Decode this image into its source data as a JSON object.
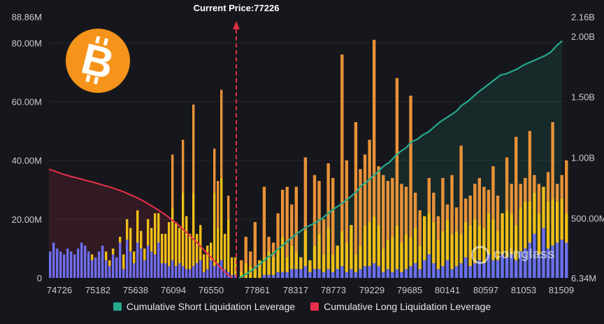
{
  "chart_data": {
    "type": "bar",
    "current_price_label": "Current Price:77226",
    "current_price": 77226,
    "x_ticks": [
      "74726",
      "75182",
      "75638",
      "76094",
      "76550",
      "77861",
      "78317",
      "78773",
      "79229",
      "79685",
      "80141",
      "80597",
      "81053",
      "81509"
    ],
    "y_left_ticks": [
      "0",
      "20.00M",
      "40.00M",
      "60.00M",
      "80.00M",
      "88.86M"
    ],
    "y_left_max": 88.86,
    "y_right_ticks": [
      "6.34M",
      "500.00M",
      "1.00B",
      "1.50B",
      "2.00B",
      "2.16B"
    ],
    "y_right_max": 2.16,
    "legend": [
      {
        "name": "Cumulative Short Liquidation Leverage",
        "color": "#26a98e"
      },
      {
        "name": "Cumulative Long Liquidation Leverage",
        "color": "#e8304b"
      }
    ],
    "colors": {
      "blue": "#6c6ef0",
      "yellow": "#f0be18",
      "orange": "#e99238",
      "short_line": "#26a98e",
      "long_line": "#e8304b",
      "price_line": "#d9313f"
    },
    "left_bars": [
      [
        9,
        0,
        0
      ],
      [
        12,
        0,
        0
      ],
      [
        10,
        0,
        0
      ],
      [
        9,
        0,
        0
      ],
      [
        8,
        0,
        0
      ],
      [
        10,
        0,
        0
      ],
      [
        9,
        0,
        0
      ],
      [
        8,
        0,
        0
      ],
      [
        10,
        0,
        0
      ],
      [
        12,
        0,
        0
      ],
      [
        11,
        0,
        0
      ],
      [
        9,
        0,
        0
      ],
      [
        6,
        2,
        0
      ],
      [
        7,
        0,
        0
      ],
      [
        9,
        0,
        0
      ],
      [
        11,
        0,
        0
      ],
      [
        6,
        3,
        0
      ],
      [
        4,
        2,
        0
      ],
      [
        8,
        2,
        0
      ],
      [
        7,
        0,
        0
      ],
      [
        12,
        2,
        0
      ],
      [
        3,
        5,
        0
      ],
      [
        13,
        7,
        0
      ],
      [
        9,
        8,
        0
      ],
      [
        5,
        4,
        0
      ],
      [
        12,
        11,
        0
      ],
      [
        10,
        6,
        0
      ],
      [
        6,
        4,
        0
      ],
      [
        11,
        9,
        0
      ],
      [
        9,
        8,
        0
      ],
      [
        8,
        14,
        0
      ],
      [
        12,
        10,
        0
      ],
      [
        5,
        10,
        0
      ],
      [
        5,
        10,
        0
      ],
      [
        4,
        15,
        0
      ],
      [
        6,
        18,
        18
      ],
      [
        4,
        15,
        0
      ],
      [
        5,
        12,
        0
      ],
      [
        4,
        25,
        18
      ],
      [
        3,
        18,
        0
      ],
      [
        3,
        12,
        0
      ],
      [
        4,
        25,
        30
      ],
      [
        5,
        10,
        0
      ],
      [
        6,
        12,
        0
      ],
      [
        2,
        6,
        0
      ],
      [
        3,
        8,
        0
      ],
      [
        6,
        6,
        0
      ],
      [
        4,
        25,
        15
      ],
      [
        5,
        12,
        16
      ],
      [
        6,
        28,
        30
      ],
      [
        3,
        12,
        0
      ],
      [
        2,
        18,
        8
      ],
      [
        1,
        6,
        0
      ],
      [
        1,
        6,
        0
      ]
    ],
    "right_bars": [
      [
        0,
        2,
        4
      ],
      [
        0,
        5,
        9
      ],
      [
        0,
        4,
        5
      ],
      [
        0,
        3,
        16
      ],
      [
        0,
        6,
        0
      ],
      [
        1,
        6,
        24
      ],
      [
        1,
        8,
        5
      ],
      [
        1,
        6,
        5
      ],
      [
        2,
        8,
        12
      ],
      [
        2,
        12,
        16
      ],
      [
        2,
        5,
        24
      ],
      [
        3,
        8,
        14
      ],
      [
        3,
        6,
        22
      ],
      [
        3,
        4,
        0
      ],
      [
        4,
        12,
        25
      ],
      [
        2,
        4,
        0
      ],
      [
        3,
        8,
        24
      ],
      [
        3,
        12,
        18
      ],
      [
        2,
        6,
        12
      ],
      [
        3,
        14,
        22
      ],
      [
        2,
        6,
        26
      ],
      [
        3,
        8,
        0
      ],
      [
        4,
        12,
        60
      ],
      [
        2,
        10,
        28
      ],
      [
        3,
        15,
        0
      ],
      [
        2,
        6,
        45
      ],
      [
        3,
        8,
        26
      ],
      [
        4,
        14,
        24
      ],
      [
        4,
        15,
        28
      ],
      [
        5,
        16,
        60
      ],
      [
        4,
        14,
        20
      ],
      [
        2,
        8,
        25
      ],
      [
        3,
        10,
        20
      ],
      [
        2,
        12,
        20
      ],
      [
        3,
        15,
        50
      ],
      [
        2,
        10,
        20
      ],
      [
        3,
        12,
        16
      ],
      [
        4,
        10,
        48
      ],
      [
        5,
        12,
        12
      ],
      [
        3,
        8,
        12
      ],
      [
        6,
        15,
        0
      ],
      [
        8,
        14,
        12
      ],
      [
        5,
        14,
        10
      ],
      [
        3,
        10,
        8
      ],
      [
        4,
        12,
        18
      ],
      [
        6,
        14,
        5
      ],
      [
        3,
        12,
        20
      ],
      [
        4,
        12,
        8
      ],
      [
        5,
        10,
        30
      ],
      [
        7,
        12,
        8
      ],
      [
        4,
        14,
        10
      ],
      [
        5,
        15,
        12
      ],
      [
        6,
        12,
        16
      ],
      [
        5,
        12,
        14
      ],
      [
        8,
        14,
        8
      ],
      [
        6,
        14,
        18
      ],
      [
        6,
        10,
        12
      ],
      [
        8,
        14,
        0
      ],
      [
        7,
        16,
        18
      ],
      [
        8,
        14,
        10
      ],
      [
        6,
        12,
        30
      ],
      [
        9,
        15,
        8
      ],
      [
        10,
        16,
        8
      ],
      [
        12,
        14,
        24
      ],
      [
        15,
        14,
        6
      ],
      [
        8,
        14,
        10
      ],
      [
        17,
        14,
        0
      ],
      [
        10,
        16,
        10
      ],
      [
        11,
        16,
        26
      ],
      [
        12,
        14,
        6
      ],
      [
        13,
        14,
        8
      ],
      [
        12,
        10,
        18
      ]
    ],
    "short_cumulative": [
      6.34,
      30,
      60,
      95,
      130,
      170,
      200,
      245,
      280,
      320,
      360,
      390,
      425,
      445,
      470,
      500,
      540,
      575,
      605,
      640,
      675,
      715,
      770,
      800,
      845,
      885,
      930,
      960,
      1010,
      1050,
      1080,
      1130,
      1150,
      1185,
      1210,
      1250,
      1290,
      1320,
      1350,
      1380,
      1430,
      1460,
      1500,
      1540,
      1575,
      1610,
      1645,
      1680,
      1690,
      1710,
      1730,
      1760,
      1780,
      1800,
      1820,
      1840,
      1870,
      1920,
      1960
    ],
    "long_cumulative": [
      37,
      36.3,
      35.5,
      34.9,
      34.3,
      33.8,
      33.2,
      32.7,
      32.1,
      31.5,
      30.9,
      30.2,
      29.5,
      28.6,
      27.7,
      26.7,
      25.5,
      24.3,
      23,
      21.6,
      20,
      18.4,
      16.5,
      14.6,
      12.5,
      10.4,
      8.2,
      6,
      3.8,
      1.6,
      0
    ]
  }
}
